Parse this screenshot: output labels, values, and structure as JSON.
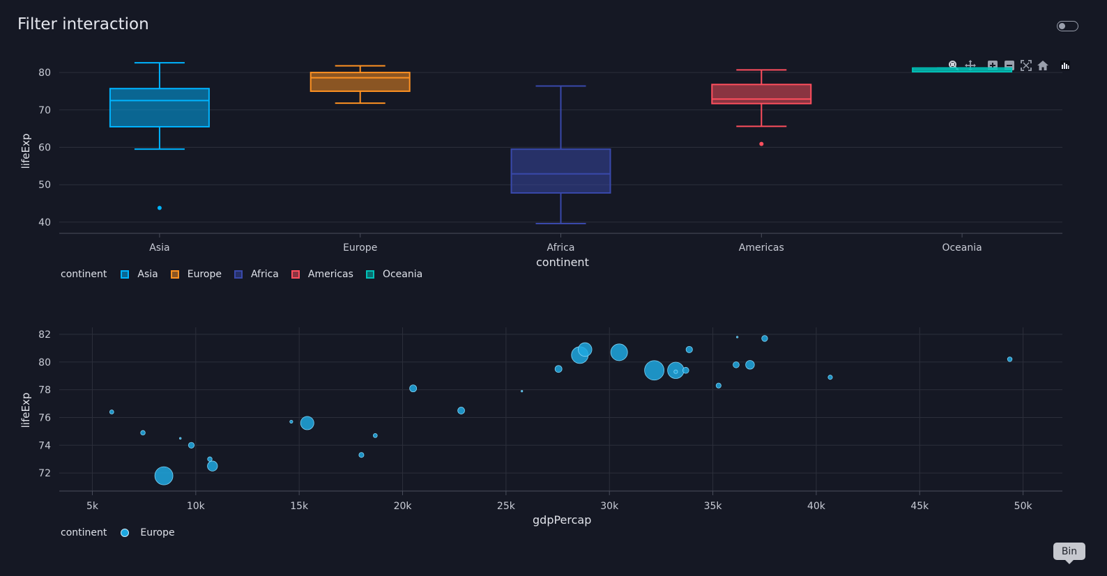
{
  "page": {
    "title": "Filter interaction",
    "tooltip_label": "Bin"
  },
  "modebar": {
    "icons": [
      "zoom-icon",
      "pan-icon",
      "zoom-in-icon",
      "zoom-out-icon",
      "autoscale-icon",
      "reset-axes-icon",
      "plotly-logo-icon"
    ]
  },
  "colors": {
    "background": "#151824",
    "Asia": "#00b4ff",
    "Europe": "#ff9222",
    "Africa": "#3949ab",
    "Americas": "#ff4f5e",
    "Oceania": "#00c2b8",
    "grid": "#2c2f3b"
  },
  "chart_data": [
    {
      "type": "box",
      "xlabel": "continent",
      "ylabel": "lifeExp",
      "ylim": [
        37,
        83
      ],
      "yticks": [
        40,
        50,
        60,
        70,
        80
      ],
      "categories": [
        "Asia",
        "Europe",
        "Africa",
        "Americas",
        "Oceania"
      ],
      "legend_title": "continent",
      "legend_placement": "bottom-left",
      "series": [
        {
          "name": "Asia",
          "min": 59.5,
          "q1": 65.5,
          "median": 72.5,
          "q3": 75.7,
          "max": 82.6,
          "outliers": [
            43.8
          ]
        },
        {
          "name": "Europe",
          "min": 71.8,
          "q1": 75.0,
          "median": 78.6,
          "q3": 80.0,
          "max": 81.8,
          "outliers": []
        },
        {
          "name": "Africa",
          "min": 39.6,
          "q1": 47.8,
          "median": 52.9,
          "q3": 59.5,
          "max": 76.4,
          "outliers": []
        },
        {
          "name": "Americas",
          "min": 65.6,
          "q1": 71.7,
          "median": 72.9,
          "q3": 76.8,
          "max": 80.7,
          "outliers": [
            60.9
          ]
        },
        {
          "name": "Oceania",
          "min": 80.2,
          "q1": 80.2,
          "median": 80.7,
          "q3": 81.2,
          "max": 81.2,
          "outliers": []
        }
      ]
    },
    {
      "type": "scatter",
      "xlabel": "gdpPercap",
      "ylabel": "lifeExp",
      "xlim": [
        3400,
        51900
      ],
      "ylim": [
        70.7,
        82.5
      ],
      "xticks": [
        5000,
        10000,
        15000,
        20000,
        25000,
        30000,
        35000,
        40000,
        45000,
        50000
      ],
      "xticklabels": [
        "5k",
        "10k",
        "15k",
        "20k",
        "25k",
        "30k",
        "35k",
        "40k",
        "45k",
        "50k"
      ],
      "yticks": [
        72,
        74,
        76,
        78,
        80,
        82
      ],
      "legend_title": "continent",
      "legend_placement": "bottom-left",
      "series": [
        {
          "name": "Europe",
          "points": [
            {
              "x": 5937,
              "y": 76.4,
              "pop": 3.6
            },
            {
              "x": 7446,
              "y": 74.9,
              "pop": 4.5
            },
            {
              "x": 9254,
              "y": 74.5,
              "pop": 0.7
            },
            {
              "x": 8458,
              "y": 71.8,
              "pop": 71
            },
            {
              "x": 9787,
              "y": 74.0,
              "pop": 7.3
            },
            {
              "x": 10681,
              "y": 73.0,
              "pop": 4.5
            },
            {
              "x": 10808,
              "y": 72.5,
              "pop": 22
            },
            {
              "x": 14619,
              "y": 75.7,
              "pop": 2.0
            },
            {
              "x": 15390,
              "y": 75.6,
              "pop": 38.5
            },
            {
              "x": 18009,
              "y": 73.3,
              "pop": 5.4
            },
            {
              "x": 18678,
              "y": 74.7,
              "pop": 3.6
            },
            {
              "x": 20510,
              "y": 78.1,
              "pop": 10.6
            },
            {
              "x": 22833,
              "y": 76.5,
              "pop": 10.2
            },
            {
              "x": 25768,
              "y": 77.9,
              "pop": 0.6
            },
            {
              "x": 27538,
              "y": 79.5,
              "pop": 10.5
            },
            {
              "x": 28570,
              "y": 80.5,
              "pop": 60.8
            },
            {
              "x": 28821,
              "y": 80.9,
              "pop": 40.4
            },
            {
              "x": 30470,
              "y": 80.7,
              "pop": 61
            },
            {
              "x": 32170,
              "y": 79.4,
              "pop": 82.4
            },
            {
              "x": 33207,
              "y": 79.4,
              "pop": 58
            },
            {
              "x": 33207,
              "y": 79.3,
              "pop": 3.0
            },
            {
              "x": 33692,
              "y": 79.4,
              "pop": 8.2
            },
            {
              "x": 33860,
              "y": 80.9,
              "pop": 9.0
            },
            {
              "x": 35278,
              "y": 78.3,
              "pop": 5.5
            },
            {
              "x": 36126,
              "y": 79.8,
              "pop": 8.2
            },
            {
              "x": 36181,
              "y": 81.8,
              "pop": 0.3
            },
            {
              "x": 36798,
              "y": 79.8,
              "pop": 16.6
            },
            {
              "x": 37506,
              "y": 81.7,
              "pop": 7.6
            },
            {
              "x": 40676,
              "y": 78.9,
              "pop": 4.1
            },
            {
              "x": 49357,
              "y": 80.2,
              "pop": 4.6
            }
          ]
        }
      ]
    }
  ]
}
